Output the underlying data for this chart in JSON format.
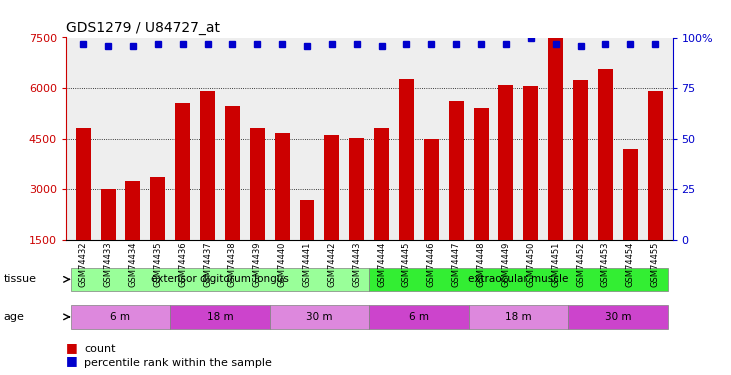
{
  "title": "GDS1279 / U84727_at",
  "samples": [
    "GSM74432",
    "GSM74433",
    "GSM74434",
    "GSM74435",
    "GSM74436",
    "GSM74437",
    "GSM74438",
    "GSM74439",
    "GSM74440",
    "GSM74441",
    "GSM74442",
    "GSM74443",
    "GSM74444",
    "GSM74445",
    "GSM74446",
    "GSM74447",
    "GSM74448",
    "GSM74449",
    "GSM74450",
    "GSM74451",
    "GSM74452",
    "GSM74453",
    "GSM74454",
    "GSM74455"
  ],
  "counts": [
    4830,
    3020,
    3250,
    3380,
    5550,
    5920,
    5480,
    4830,
    4680,
    2680,
    4620,
    4530,
    4820,
    6280,
    4500,
    5630,
    5400,
    6080,
    6070,
    7530,
    6230,
    6580,
    4200,
    5920
  ],
  "percentile": [
    97,
    96,
    96,
    97,
    97,
    97,
    97,
    97,
    97,
    96,
    97,
    97,
    96,
    97,
    97,
    97,
    97,
    97,
    100,
    97,
    96,
    97,
    97,
    97
  ],
  "bar_color": "#cc0000",
  "dot_color": "#0000cc",
  "ymin": 1500,
  "ymax": 7500,
  "yticks": [
    1500,
    3000,
    4500,
    6000,
    7500
  ],
  "right_yticks": [
    0,
    25,
    50,
    75,
    100
  ],
  "grid_lines": [
    3000,
    4500,
    6000
  ],
  "tissue_groups": [
    {
      "label": "extensor digitorum longus",
      "start": 0,
      "end": 12,
      "color": "#99ff99"
    },
    {
      "label": "extraocular muscle",
      "start": 12,
      "end": 24,
      "color": "#33ee33"
    }
  ],
  "age_groups": [
    {
      "label": "6 m",
      "start": 0,
      "end": 4,
      "color": "#dd88dd"
    },
    {
      "label": "18 m",
      "start": 4,
      "end": 8,
      "color": "#cc44cc"
    },
    {
      "label": "30 m",
      "start": 8,
      "end": 12,
      "color": "#dd88dd"
    },
    {
      "label": "6 m",
      "start": 12,
      "end": 16,
      "color": "#cc44cc"
    },
    {
      "label": "18 m",
      "start": 16,
      "end": 20,
      "color": "#dd88dd"
    },
    {
      "label": "30 m",
      "start": 20,
      "end": 24,
      "color": "#cc44cc"
    }
  ],
  "legend_count_color": "#cc0000",
  "legend_dot_color": "#0000cc",
  "tissue_label": "tissue",
  "age_label": "age",
  "background_color": "#ffffff",
  "main_bg": "#eeeeee"
}
